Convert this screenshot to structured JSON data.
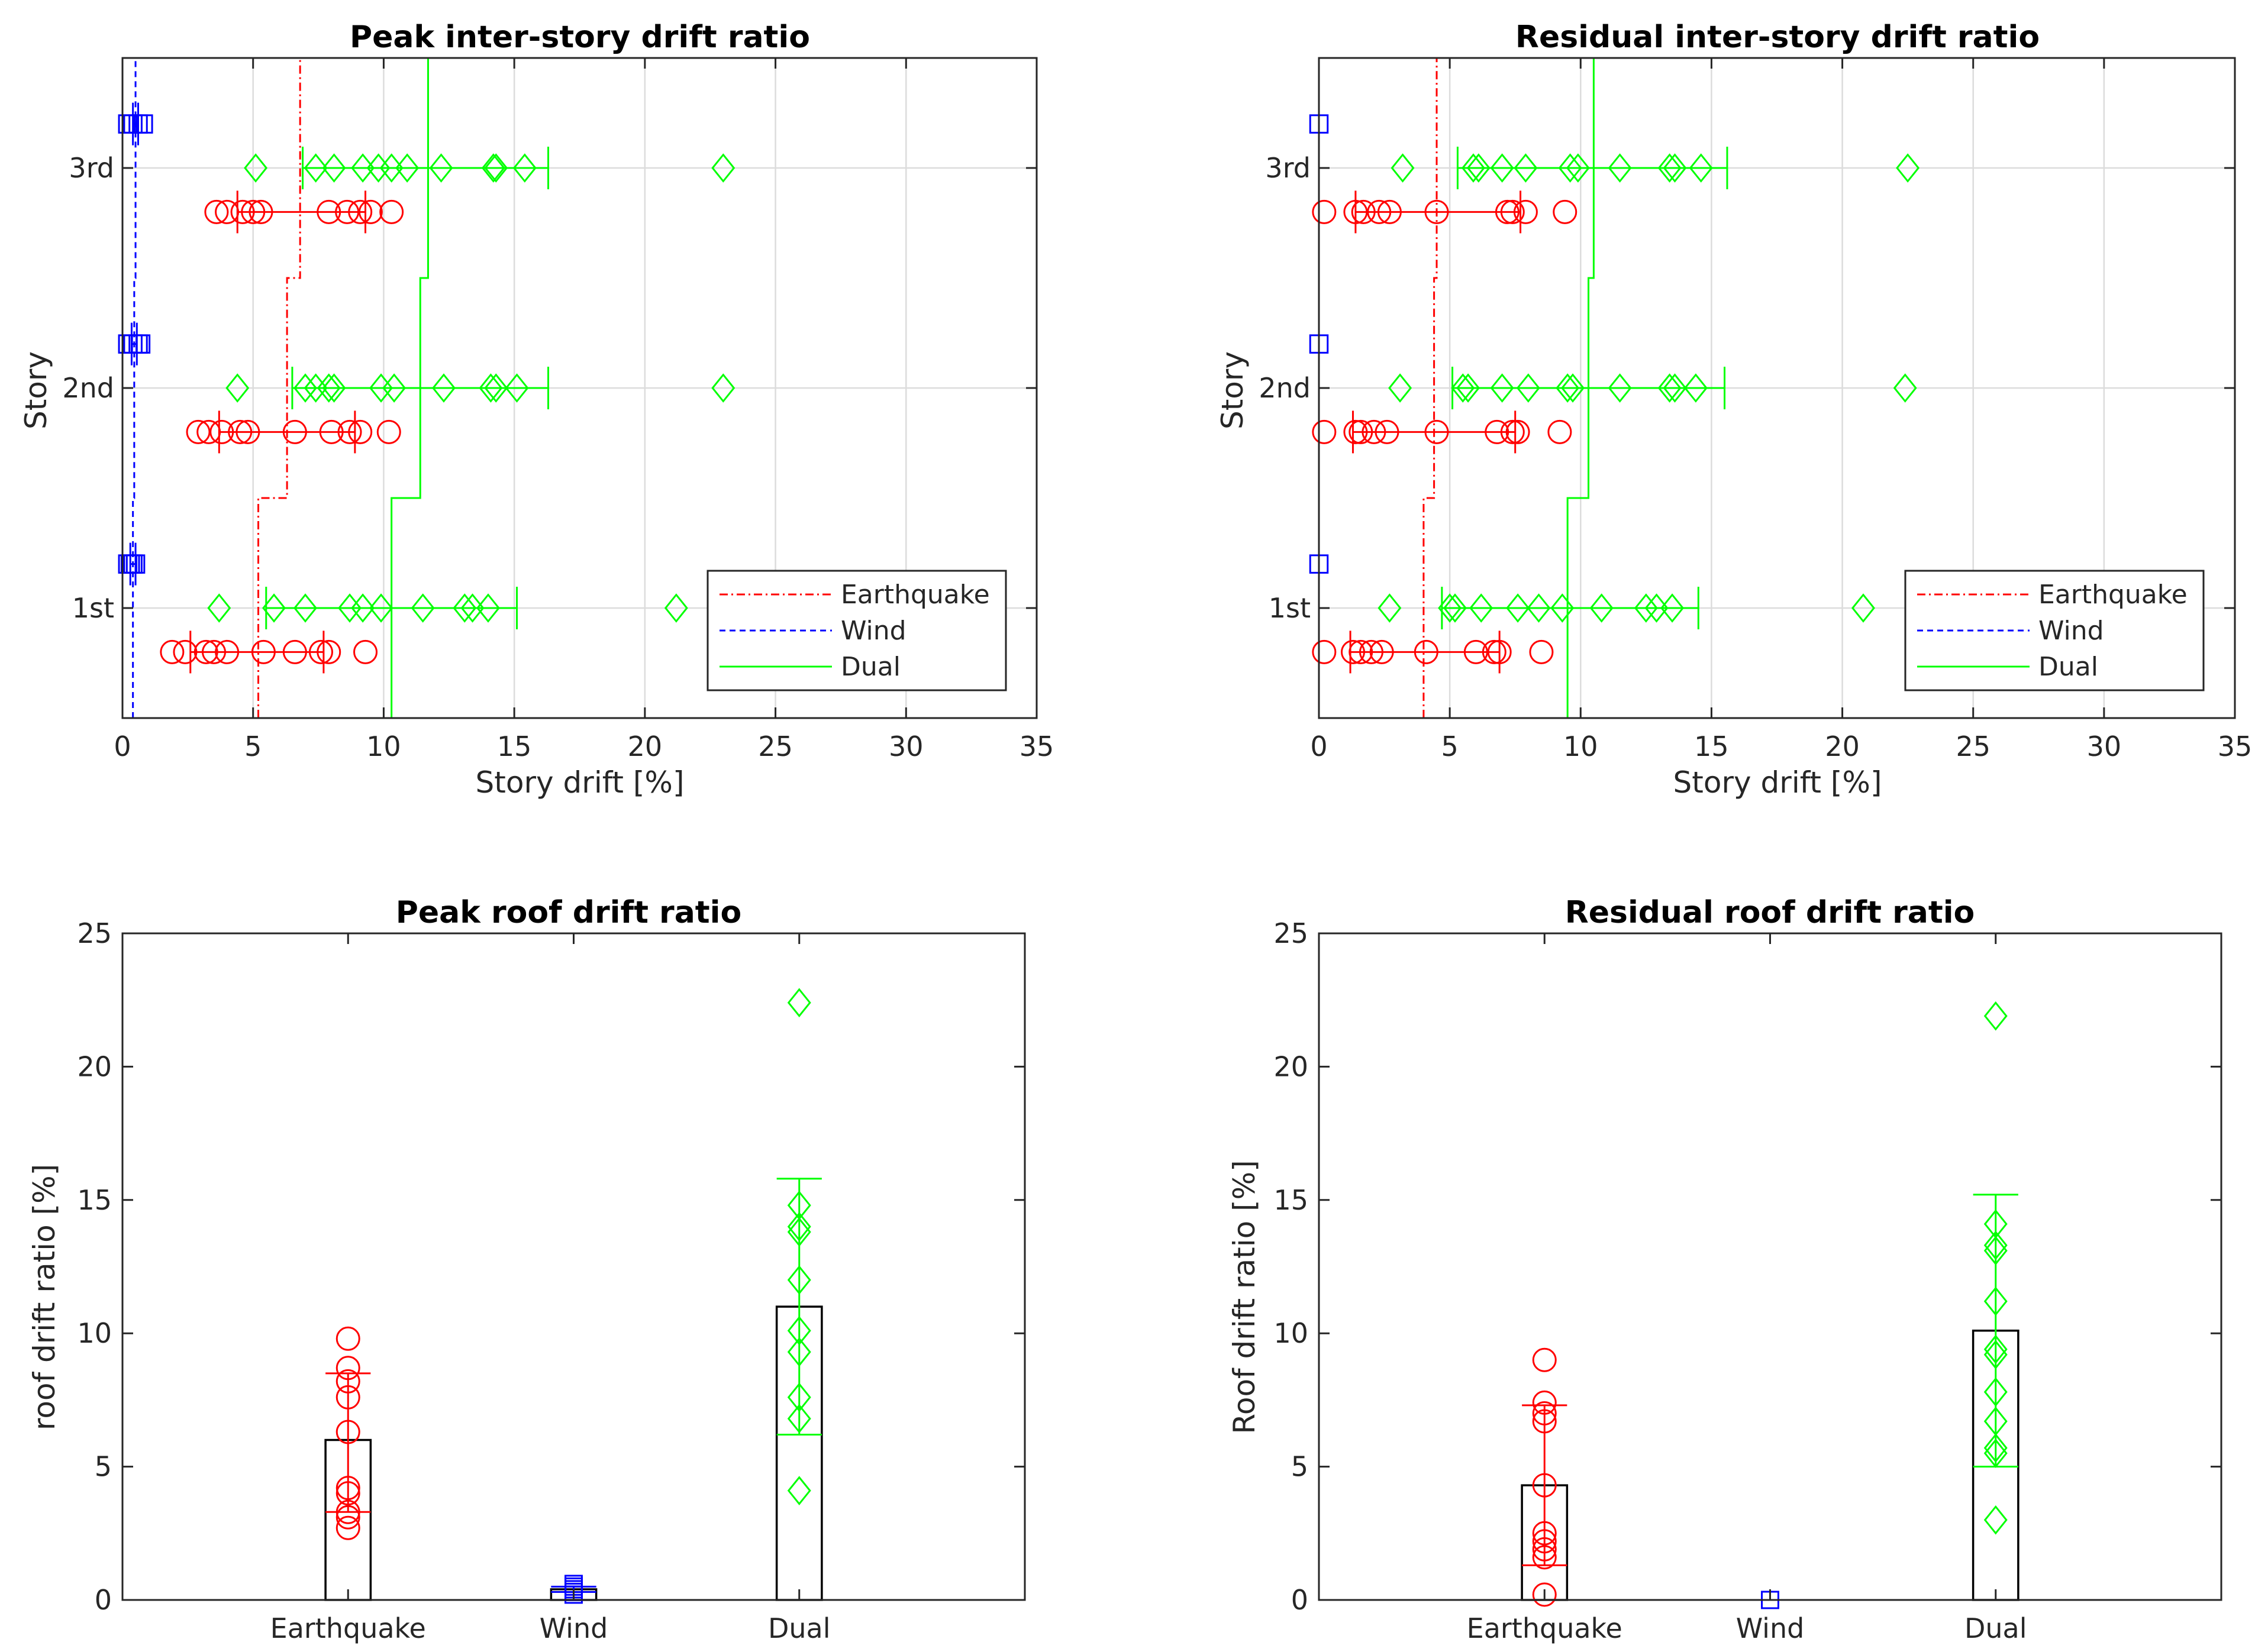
{
  "colors": {
    "earthquake": "#ff0000",
    "wind": "#0000ff",
    "dual": "#00ff00"
  },
  "chart_data": [
    {
      "type": "scatter",
      "title": "Peak inter-story drift ratio",
      "xlabel": "Story drift [%]",
      "ylabel": "Story",
      "xlim": [
        0,
        35
      ],
      "xticks": [
        "0",
        "5",
        "10",
        "15",
        "20",
        "25",
        "30",
        "35"
      ],
      "categories": [
        "1st",
        "2nd",
        "3rd"
      ],
      "grid": true,
      "legend": "bottom-right",
      "legend_entries": [
        "Earthquake",
        "Wind",
        "Dual"
      ],
      "series": [
        {
          "name": "Earthquake",
          "marker": "circle",
          "points": {
            "1st": [
              1.9,
              2.4,
              3.2,
              3.5,
              4.0,
              5.4,
              6.6,
              7.6,
              7.9,
              9.3
            ],
            "2nd": [
              2.9,
              3.3,
              3.8,
              4.5,
              4.8,
              6.6,
              8.0,
              8.7,
              9.1,
              10.2
            ],
            "3rd": [
              3.6,
              4.0,
              4.6,
              5.0,
              5.3,
              7.9,
              8.6,
              9.1,
              9.5,
              10.3
            ]
          },
          "mean": {
            "1st": 5.2,
            "2nd": 6.3,
            "3rd": 6.8
          },
          "errorbar": {
            "1st": [
              2.6,
              7.7
            ],
            "2nd": [
              3.7,
              8.9
            ],
            "3rd": [
              4.4,
              9.3
            ]
          }
        },
        {
          "name": "Wind",
          "marker": "square",
          "points": {
            "1st": [
              0.2,
              0.3,
              0.4,
              0.5
            ],
            "2nd": [
              0.2,
              0.4,
              0.6,
              0.7
            ],
            "3rd": [
              0.2,
              0.4,
              0.6,
              0.8
            ]
          },
          "mean": {
            "1st": 0.4,
            "2nd": 0.45,
            "3rd": 0.5
          },
          "errorbar": {
            "1st": [
              0.3,
              0.5
            ],
            "2nd": [
              0.35,
              0.55
            ],
            "3rd": [
              0.4,
              0.6
            ]
          }
        },
        {
          "name": "Dual",
          "marker": "diamond",
          "points": {
            "1st": [
              3.7,
              5.8,
              7.0,
              8.7,
              9.2,
              9.9,
              11.5,
              13.1,
              13.4,
              14.0,
              21.2
            ],
            "2nd": [
              4.4,
              7.0,
              7.4,
              7.9,
              8.1,
              9.9,
              10.4,
              12.3,
              14.1,
              14.3,
              15.1,
              23.0
            ],
            "3rd": [
              5.1,
              7.4,
              8.1,
              9.2,
              9.8,
              10.3,
              10.9,
              12.2,
              14.2,
              14.3,
              15.4,
              23.0
            ]
          },
          "mean": {
            "1st": 10.3,
            "2nd": 11.4,
            "3rd": 11.7
          },
          "errorbar": {
            "1st": [
              5.5,
              15.1
            ],
            "2nd": [
              6.5,
              16.3
            ],
            "3rd": [
              6.9,
              16.3
            ]
          }
        }
      ]
    },
    {
      "type": "scatter",
      "title": "Residual inter-story drift ratio",
      "xlabel": "Story drift [%]",
      "ylabel": "Story",
      "xlim": [
        0,
        35
      ],
      "xticks": [
        "0",
        "5",
        "10",
        "15",
        "20",
        "25",
        "30",
        "35"
      ],
      "categories": [
        "1st",
        "2nd",
        "3rd"
      ],
      "grid": true,
      "legend": "bottom-right",
      "legend_entries": [
        "Earthquake",
        "Wind",
        "Dual"
      ],
      "series": [
        {
          "name": "Earthquake",
          "marker": "circle",
          "points": {
            "1st": [
              0.2,
              1.3,
              1.6,
              2.0,
              2.4,
              4.1,
              6.0,
              6.7,
              6.9,
              8.5
            ],
            "2nd": [
              0.2,
              1.4,
              1.6,
              2.1,
              2.6,
              4.5,
              6.8,
              7.4,
              7.6,
              9.2
            ],
            "3rd": [
              0.2,
              1.4,
              1.7,
              2.3,
              2.7,
              4.5,
              7.2,
              7.4,
              7.9,
              9.4
            ]
          },
          "mean": {
            "1st": 4.0,
            "2nd": 4.4,
            "3rd": 4.5
          },
          "errorbar": {
            "1st": [
              1.2,
              6.9
            ],
            "2nd": [
              1.3,
              7.5
            ],
            "3rd": [
              1.4,
              7.7
            ]
          }
        },
        {
          "name": "Wind",
          "marker": "square",
          "points": {
            "1st": [
              0.0
            ],
            "2nd": [
              0.0
            ],
            "3rd": [
              0.0
            ]
          },
          "mean": {
            "1st": 0.0,
            "2nd": 0.0,
            "3rd": 0.0
          },
          "errorbar": {
            "1st": [
              0.0,
              0.0
            ],
            "2nd": [
              0.0,
              0.0
            ],
            "3rd": [
              0.0,
              0.0
            ]
          }
        },
        {
          "name": "Dual",
          "marker": "diamond",
          "points": {
            "1st": [
              2.7,
              5.0,
              5.2,
              6.2,
              7.6,
              8.4,
              9.3,
              10.8,
              12.5,
              12.9,
              13.5,
              20.8
            ],
            "2nd": [
              3.1,
              5.5,
              5.7,
              7.0,
              8.0,
              9.5,
              9.7,
              11.5,
              13.4,
              13.6,
              14.4,
              22.4
            ],
            "3rd": [
              3.2,
              5.9,
              6.1,
              7.0,
              7.9,
              9.6,
              9.9,
              11.5,
              13.4,
              13.6,
              14.6,
              22.5
            ]
          },
          "mean": {
            "1st": 9.5,
            "2nd": 10.3,
            "3rd": 10.5
          },
          "errorbar": {
            "1st": [
              4.7,
              14.5
            ],
            "2nd": [
              5.1,
              15.5
            ],
            "3rd": [
              5.3,
              15.6
            ]
          }
        }
      ]
    },
    {
      "type": "bar",
      "title": "Peak roof drift ratio",
      "xlabel": "",
      "ylabel": "roof drift ratio [%]",
      "ylim": [
        0,
        25
      ],
      "yticks": [
        "0",
        "5",
        "10",
        "15",
        "20",
        "25"
      ],
      "categories": [
        "Earthquake",
        "Wind",
        "Dual"
      ],
      "values": [
        6.0,
        0.4,
        11.0
      ],
      "errorbar": [
        [
          3.3,
          8.5
        ],
        [
          0.3,
          0.5
        ],
        [
          6.2,
          15.8
        ]
      ],
      "points": [
        [
          2.7,
          3.1,
          3.3,
          4.0,
          4.2,
          6.3,
          7.6,
          8.2,
          8.7,
          9.8
        ],
        [
          0.2,
          0.3,
          0.4,
          0.5,
          0.6
        ],
        [
          4.1,
          6.8,
          7.6,
          9.3,
          10.1,
          12.0,
          13.8,
          14.0,
          14.8,
          22.4
        ]
      ]
    },
    {
      "type": "bar",
      "title": "Residual roof drift ratio",
      "xlabel": "",
      "ylabel": "Roof drift ratio [%]",
      "ylim": [
        0,
        25
      ],
      "yticks": [
        "0",
        "5",
        "10",
        "15",
        "20",
        "25"
      ],
      "categories": [
        "Earthquake",
        "Wind",
        "Dual"
      ],
      "values": [
        4.3,
        0.0,
        10.1
      ],
      "errorbar": [
        [
          1.3,
          7.3
        ],
        [
          0.0,
          0.0
        ],
        [
          5.0,
          15.2
        ]
      ],
      "points": [
        [
          0.2,
          1.6,
          1.9,
          2.2,
          2.5,
          4.3,
          6.7,
          7.0,
          7.4,
          9.0
        ],
        [
          0.0
        ],
        [
          3.0,
          5.5,
          5.7,
          6.7,
          7.8,
          9.2,
          9.4,
          11.2,
          13.1,
          13.3,
          14.1,
          21.9
        ]
      ]
    }
  ]
}
